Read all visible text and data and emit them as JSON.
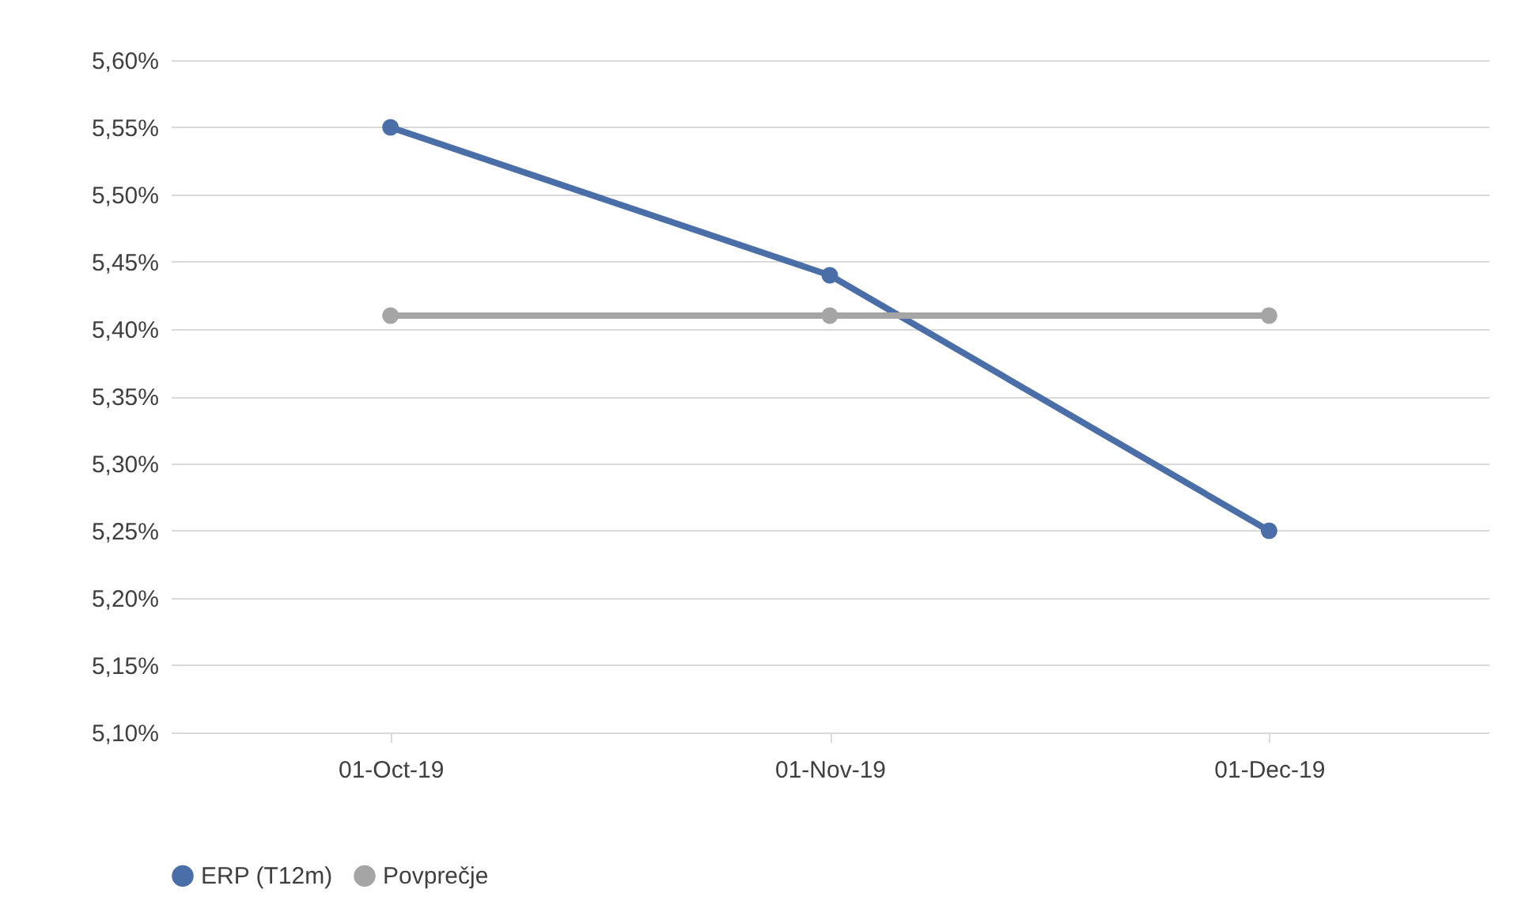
{
  "chart_data": {
    "type": "line",
    "categories": [
      "01-Oct-19",
      "01-Nov-19",
      "01-Dec-19"
    ],
    "series": [
      {
        "name": "ERP (T12m)",
        "color": "#4a6ea8",
        "values": [
          5.55,
          5.44,
          5.25
        ]
      },
      {
        "name": "Povprečje",
        "color": "#a5a5a5",
        "values": [
          5.41,
          5.41,
          5.41
        ]
      }
    ],
    "ylim": [
      5.1,
      5.6
    ],
    "yticks": [
      {
        "value": 5.1,
        "label": "5,10%"
      },
      {
        "value": 5.15,
        "label": "5,15%"
      },
      {
        "value": 5.2,
        "label": "5,20%"
      },
      {
        "value": 5.25,
        "label": "5,25%"
      },
      {
        "value": 5.3,
        "label": "5,30%"
      },
      {
        "value": 5.35,
        "label": "5,35%"
      },
      {
        "value": 5.4,
        "label": "5,40%"
      },
      {
        "value": 5.45,
        "label": "5,45%"
      },
      {
        "value": 5.5,
        "label": "5,50%"
      },
      {
        "value": 5.55,
        "label": "5,55%"
      },
      {
        "value": 5.6,
        "label": "5,60%"
      }
    ],
    "grid": "y",
    "legend": "bottom",
    "marker": "circle",
    "line_style": "solid"
  }
}
